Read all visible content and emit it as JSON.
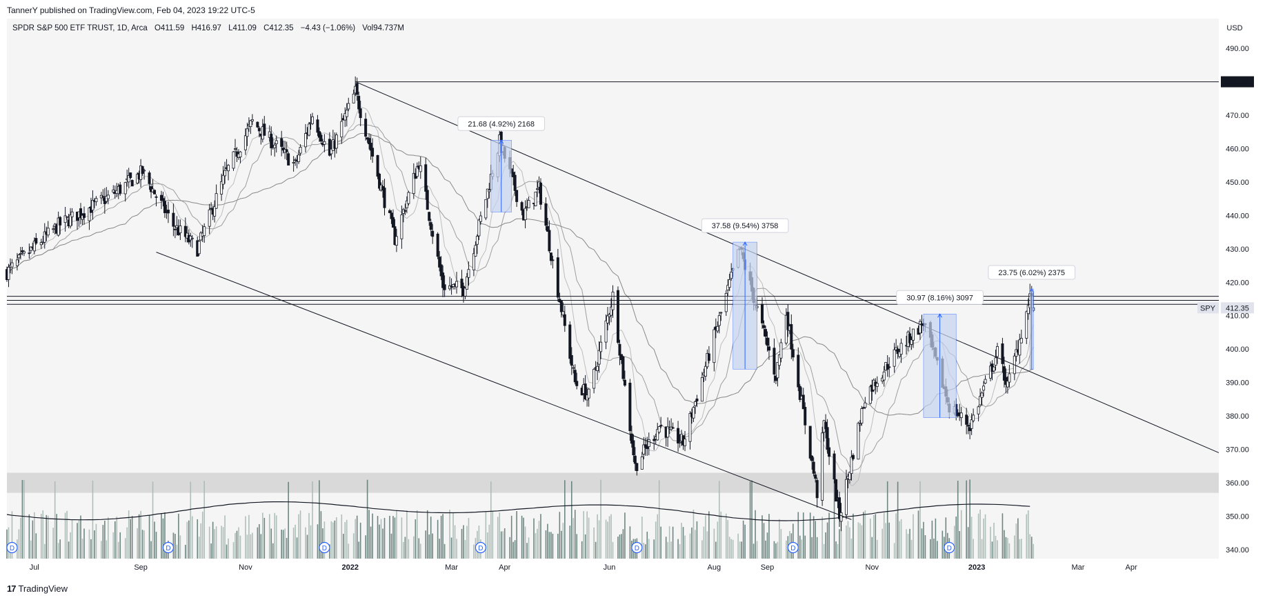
{
  "header": {
    "published": "TannerY published on TradingView.com, Feb 04, 2023 19:22 UTC-5"
  },
  "legend": {
    "symbol": "SPDR S&P 500 ETF TRUST, 1D, Arca",
    "open": "O411.59",
    "high": "H416.97",
    "low": "L411.09",
    "close": "C412.35",
    "change": "−4.43 (−1.06%)",
    "volume": "Vol94.737M"
  },
  "footer": {
    "brand": "TradingView",
    "logo": "17"
  },
  "chart_data": {
    "type": "candlestick",
    "currency": "USD",
    "ylim": [
      337,
      495
    ],
    "y_ticks": [
      "490.00",
      "480.00",
      "470.00",
      "460.00",
      "450.00",
      "440.00",
      "430.00",
      "420.00",
      "410.00",
      "400.00",
      "390.00",
      "380.00",
      "370.00",
      "360.00",
      "350.00",
      "340.00"
    ],
    "y_tick_values": [
      490,
      480,
      470,
      460,
      450,
      440,
      430,
      420,
      410,
      400,
      390,
      380,
      370,
      360,
      350,
      340
    ],
    "x_ticks": [
      {
        "label": "Jul",
        "date": "2021-07-01",
        "bold": false
      },
      {
        "label": "Sep",
        "date": "2021-09-01",
        "bold": false
      },
      {
        "label": "Nov",
        "date": "2021-11-01",
        "bold": false
      },
      {
        "label": "2022",
        "date": "2022-01-01",
        "bold": true
      },
      {
        "label": "Mar",
        "date": "2022-03-01",
        "bold": false
      },
      {
        "label": "Apr",
        "date": "2022-04-01",
        "bold": false
      },
      {
        "label": "Jun",
        "date": "2022-06-01",
        "bold": false
      },
      {
        "label": "Aug",
        "date": "2022-08-01",
        "bold": false
      },
      {
        "label": "Sep",
        "date": "2022-09-01",
        "bold": false
      },
      {
        "label": "Nov",
        "date": "2022-11-01",
        "bold": false
      },
      {
        "label": "2023",
        "date": "2023-01-01",
        "bold": true
      },
      {
        "label": "Mar",
        "date": "2023-03-01",
        "bold": false
      },
      {
        "label": "Apr",
        "date": "2023-04-01",
        "bold": false
      }
    ],
    "x_range": [
      "2021-06-15",
      "2023-05-22"
    ],
    "price_path": [
      [
        "2021-06-15",
        423
      ],
      [
        "2021-07-15",
        437
      ],
      [
        "2021-08-15",
        446
      ],
      [
        "2021-09-02",
        453
      ],
      [
        "2021-09-20",
        437
      ],
      [
        "2021-10-04",
        430
      ],
      [
        "2021-10-20",
        452
      ],
      [
        "2021-11-05",
        468
      ],
      [
        "2021-11-30",
        455
      ],
      [
        "2021-12-10",
        470
      ],
      [
        "2021-12-20",
        458
      ],
      [
        "2022-01-04",
        477
      ],
      [
        "2022-01-27",
        433
      ],
      [
        "2022-02-10",
        456
      ],
      [
        "2022-02-24",
        419
      ],
      [
        "2022-03-08",
        418
      ],
      [
        "2022-03-29",
        462
      ],
      [
        "2022-04-12",
        440
      ],
      [
        "2022-04-21",
        448
      ],
      [
        "2022-05-12",
        390
      ],
      [
        "2022-05-20",
        386
      ],
      [
        "2022-06-03",
        416
      ],
      [
        "2022-06-16",
        365
      ],
      [
        "2022-06-30",
        377
      ],
      [
        "2022-07-14",
        372
      ],
      [
        "2022-08-16",
        430
      ],
      [
        "2022-09-06",
        392
      ],
      [
        "2022-09-12",
        411
      ],
      [
        "2022-09-30",
        357
      ],
      [
        "2022-10-04",
        378
      ],
      [
        "2022-10-13",
        350
      ],
      [
        "2022-10-28",
        386
      ],
      [
        "2022-11-15",
        399
      ],
      [
        "2022-12-01",
        408
      ],
      [
        "2022-12-16",
        383
      ],
      [
        "2022-12-28",
        377
      ],
      [
        "2023-01-13",
        399
      ],
      [
        "2023-01-19",
        389
      ],
      [
        "2023-02-02",
        417
      ],
      [
        "2023-02-03",
        412.35
      ]
    ],
    "volume_series": {
      "ylim": [
        0,
        1
      ],
      "note_ma": "volume moving average"
    },
    "horizontal_lines": [
      {
        "value": 479.98,
        "label": "479.98",
        "from": "2022-01-04"
      },
      {
        "value": 415.8,
        "label": ""
      },
      {
        "value": 414.6,
        "label": ""
      },
      {
        "value": 413.4,
        "label": ""
      }
    ],
    "last_price": {
      "value": 412.35,
      "label": "412.35",
      "symbol": "SPY"
    },
    "trendlines": [
      {
        "from": [
          "2022-01-04",
          480
        ],
        "to": [
          "2023-05-22",
          369
        ]
      },
      {
        "from": [
          "2021-09-10",
          429
        ],
        "to": [
          "2022-10-20",
          349
        ]
      }
    ],
    "volume_zone": {
      "from": 357,
      "to": 363
    },
    "measurements": [
      {
        "label": "21.68 (4.92%) 2168",
        "from": [
          "2022-03-24",
          441
        ],
        "to": [
          "2022-04-05",
          462.5
        ]
      },
      {
        "label": "37.58 (9.54%) 3758",
        "from": [
          "2022-08-12",
          394
        ],
        "to": [
          "2022-08-26",
          432
        ]
      },
      {
        "label": "30.97 (8.16%) 3097",
        "from": [
          "2022-12-01",
          379.5
        ],
        "to": [
          "2022-12-20",
          410.5
        ]
      },
      {
        "label": "23.75 (6.02%) 2375",
        "from": [
          "2023-02-01",
          394
        ],
        "to": [
          "2023-02-03",
          418
        ]
      }
    ],
    "dividend_markers": [
      {
        "date": "2021-06-18",
        "label": "D"
      },
      {
        "date": "2021-09-17",
        "label": "D"
      },
      {
        "date": "2021-12-17",
        "label": "D"
      },
      {
        "date": "2022-03-18",
        "label": "D"
      },
      {
        "date": "2022-06-17",
        "label": "D"
      },
      {
        "date": "2022-09-16",
        "label": "D"
      },
      {
        "date": "2022-12-16",
        "label": "D"
      }
    ],
    "colors": {
      "candle": "#131722",
      "ma": "#888888",
      "volume": "#5f7a74",
      "measure_fill": "#c5d3f0",
      "measure_line": "#2962ff",
      "zone": "#d3d3d3"
    }
  }
}
